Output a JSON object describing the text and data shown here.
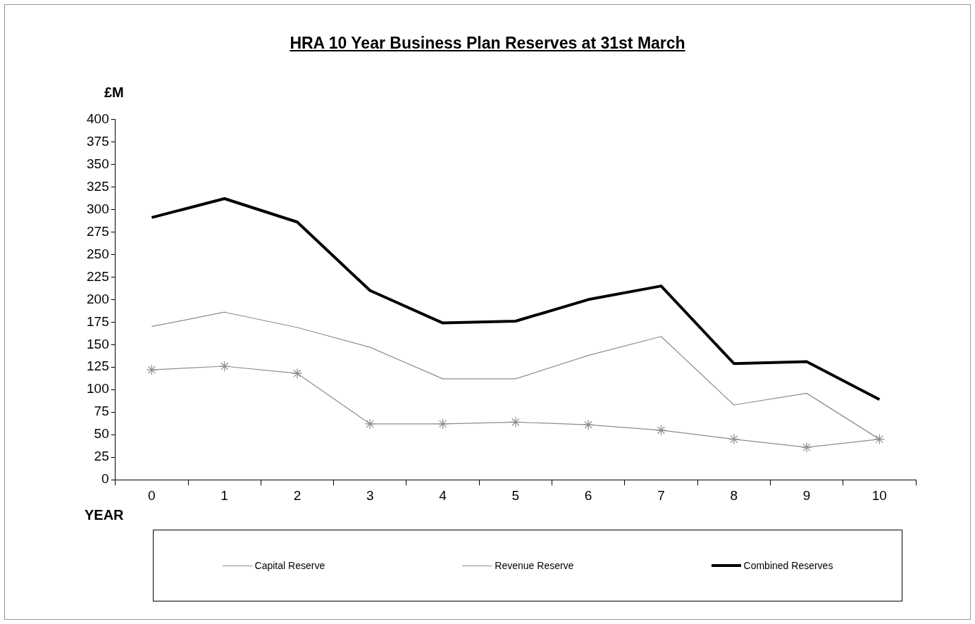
{
  "chart_data": {
    "type": "line",
    "title": "HRA 10 Year Business Plan Reserves at 31st March",
    "ylabel": "£M",
    "xlabel": "YEAR",
    "categories": [
      "0",
      "1",
      "2",
      "3",
      "4",
      "5",
      "6",
      "7",
      "8",
      "9",
      "10"
    ],
    "series": [
      {
        "name": "Capital Reserve",
        "color": "#8c8c8c",
        "marker": "none",
        "values": [
          170,
          186,
          169,
          147,
          112,
          112,
          138,
          159,
          83,
          96,
          45
        ]
      },
      {
        "name": "Revenue Reserve",
        "color": "#8c8c8c",
        "marker": "cross",
        "values": [
          122,
          126,
          118,
          62,
          62,
          64,
          61,
          55,
          45,
          36,
          45
        ]
      },
      {
        "name": "Combined Reserves",
        "color": "#000000",
        "marker": "none",
        "values": [
          291,
          312,
          286,
          210,
          174,
          176,
          200,
          215,
          129,
          131,
          89
        ]
      }
    ],
    "ylim": [
      0,
      400
    ],
    "yticks": [
      0,
      25,
      50,
      75,
      100,
      125,
      150,
      175,
      200,
      225,
      250,
      275,
      300,
      325,
      350,
      375,
      400
    ],
    "grid": false,
    "legend": "bottom"
  }
}
